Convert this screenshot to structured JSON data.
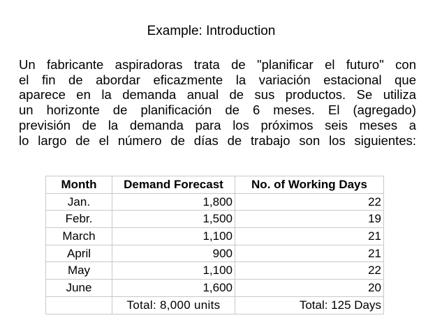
{
  "title": "Example: Introduction",
  "intro_lines": [
    "Un fabricante aspiradoras trata de \"planificar el futuro\" con",
    "el fin de abordar eficazmente la variación estacional que",
    "aparece en la demanda anual de sus productos. Se utiliza",
    "un horizonte de planificación de 6 meses. El (agregado)",
    "previsión de la demanda para los próximos seis meses a",
    "lo largo de el número de días de trabajo son los siguientes:"
  ],
  "table": {
    "headers": [
      "Month",
      "Demand Forecast",
      "No. of Working Days"
    ],
    "rows": [
      [
        "Jan.",
        "1,800",
        "22"
      ],
      [
        "Febr.",
        "1,500",
        "19"
      ],
      [
        "March",
        "1,100",
        "21"
      ],
      [
        "April",
        "900",
        "21"
      ],
      [
        "May",
        "1,100",
        "22"
      ],
      [
        "June",
        "1,600",
        "20"
      ]
    ],
    "totals": [
      "",
      "Total: 8,000 units",
      "Total: 125 Days"
    ]
  }
}
